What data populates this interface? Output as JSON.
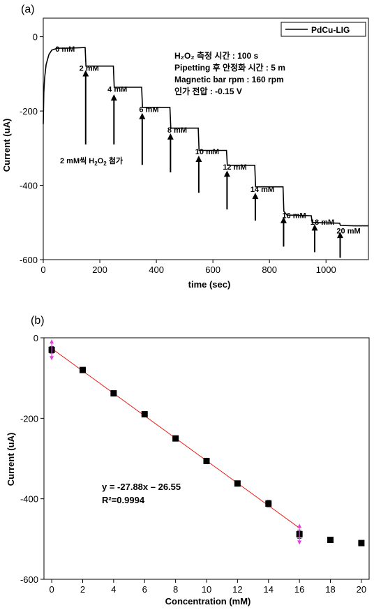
{
  "chart_data": [
    {
      "type": "line",
      "panel_label": "(a)",
      "xlabel": "time (sec)",
      "ylabel": "Current (uA)",
      "xlim": [
        0,
        1150
      ],
      "ylim": [
        -600,
        50
      ],
      "xticks": [
        0,
        200,
        400,
        600,
        800,
        1000
      ],
      "yticks": [
        0,
        -200,
        -400,
        -600
      ],
      "legend": "top-right",
      "color": "#000000",
      "series": [
        {
          "name": "PdCu-LIG",
          "x": [
            0,
            2,
            5,
            10,
            20,
            30,
            50,
            80,
            120,
            148,
            151,
            248,
            251,
            348,
            351,
            448,
            451,
            548,
            551,
            648,
            651,
            748,
            751,
            848,
            851,
            862,
            948,
            951,
            1048,
            1051,
            1100,
            1150
          ],
          "y": [
            -235,
            -150,
            -110,
            -75,
            -48,
            -36,
            -31,
            -31,
            -30,
            -29,
            -79,
            -79,
            -136,
            -136,
            -190,
            -190,
            -246,
            -246,
            -306,
            -306,
            -346,
            -346,
            -404,
            -404,
            -470,
            -480,
            -482,
            -500,
            -502,
            -508,
            -509,
            -509
          ]
        }
      ],
      "step_labels": [
        "0 mM",
        "2 mM",
        "4 mM",
        "6 mM",
        "8 mM",
        "10 mM",
        "12 mM",
        "14 mM",
        "16 mM",
        "18 mM",
        "20 mM"
      ],
      "label_anchor": [
        [
          85,
          -40
        ],
        [
          255,
          -92
        ],
        [
          455,
          -148
        ],
        [
          678,
          -203
        ],
        [
          878,
          -258
        ],
        [
          1075,
          -316
        ],
        [
          1270,
          -358
        ],
        [
          1465,
          -418
        ],
        [
          1690,
          -488
        ],
        [
          1890,
          -506
        ],
        [
          2075,
          -530
        ]
      ],
      "arrows_x": [
        150,
        250,
        350,
        450,
        550,
        650,
        750,
        850,
        960,
        1050
      ],
      "arrows_y": [
        [
          -290,
          -90
        ],
        [
          -290,
          -155
        ],
        [
          -345,
          -205
        ],
        [
          -365,
          -260
        ],
        [
          -420,
          -320
        ],
        [
          -465,
          -360
        ],
        [
          -495,
          -420
        ],
        [
          -565,
          -485
        ],
        [
          -580,
          -505
        ],
        [
          -595,
          -525
        ]
      ],
      "addition_note_prefix": "2 mM씩 H",
      "addition_note_suffix": " 첨가",
      "info_lines": [
        "H₂O₂ 측정 시간 : 100 s",
        "Pipetting 후 안정화 시간 : 5 m",
        "Magnetic bar rpm : 160 rpm",
        "인가 전압 : -0.15 V"
      ]
    },
    {
      "type": "scatter",
      "panel_label": "(b)",
      "xlabel": "Concentration (mM)",
      "ylabel": "Current (uA)",
      "xlim": [
        -0.5,
        20.5
      ],
      "ylim": [
        -600,
        0
      ],
      "xticks": [
        0,
        2,
        4,
        6,
        8,
        10,
        12,
        14,
        16,
        18,
        20
      ],
      "yticks": [
        0,
        -200,
        -400,
        -600
      ],
      "series": [
        {
          "x": [
            0,
            2,
            4,
            6,
            8,
            10,
            12,
            14,
            16,
            18,
            20
          ],
          "y": [
            -30,
            -80,
            -138,
            -190,
            -250,
            -306,
            -362,
            -412,
            -488,
            -502,
            -510
          ],
          "error": [
            8,
            0,
            0,
            0,
            0,
            0,
            6,
            8,
            10,
            0,
            0
          ]
        }
      ],
      "fit": {
        "slope": -27.88,
        "intercept": -26.55,
        "x_range": [
          0,
          16
        ],
        "color": "#e8201a"
      },
      "outlier_marker_color": "#e040e0",
      "equation": "y = -27.88x – 26.55",
      "r2": "R²=0.9994"
    }
  ]
}
